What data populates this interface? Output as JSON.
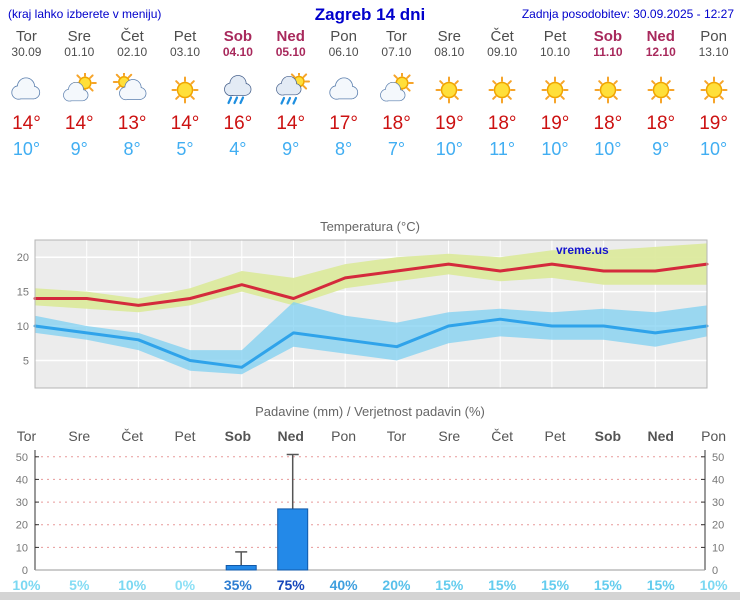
{
  "header": {
    "left_note": "(kraj lahko izberete v meniju)",
    "title": "Zagreb 14 dni",
    "updated": "Zadnja posodobitev: 30.09.2025 - 12:27"
  },
  "colors": {
    "accent_blue": "#0000cc",
    "weekend_red": "#a8295c",
    "tmax_red": "#cc1111",
    "tmin_blue": "#41aef2",
    "chart_bg": "#ececec",
    "grid_pink": "#e89a9a",
    "bar_fill": "#2389e8",
    "bar_stroke": "#1159a8",
    "whisker": "#555555"
  },
  "days": [
    {
      "name": "Tor",
      "date": "30.09",
      "weekend": false,
      "icon": "cloud",
      "tmax": "14°",
      "tmin": "10°",
      "prob": "10%",
      "prob_color": "#7bd8f2"
    },
    {
      "name": "Sre",
      "date": "01.10",
      "weekend": false,
      "icon": "sun-cloud",
      "tmax": "14°",
      "tmin": "9°",
      "prob": "5%",
      "prob_color": "#84dcf4"
    },
    {
      "name": "Čet",
      "date": "02.10",
      "weekend": false,
      "icon": "cloud-sun",
      "tmax": "13°",
      "tmin": "8°",
      "prob": "10%",
      "prob_color": "#7bd8f2"
    },
    {
      "name": "Pet",
      "date": "03.10",
      "weekend": false,
      "icon": "sun",
      "tmax": "14°",
      "tmin": "5°",
      "prob": "0%",
      "prob_color": "#8ce0f6"
    },
    {
      "name": "Sob",
      "date": "04.10",
      "weekend": true,
      "icon": "rain",
      "tmax": "16°",
      "tmin": "4°",
      "prob": "35%",
      "prob_color": "#2e7ed2"
    },
    {
      "name": "Ned",
      "date": "05.10",
      "weekend": true,
      "icon": "rain-sun",
      "tmax": "14°",
      "tmin": "9°",
      "prob": "75%",
      "prob_color": "#1646ba"
    },
    {
      "name": "Pon",
      "date": "06.10",
      "weekend": false,
      "icon": "cloud",
      "tmax": "17°",
      "tmin": "8°",
      "prob": "40%",
      "prob_color": "#3f9fde"
    },
    {
      "name": "Tor",
      "date": "07.10",
      "weekend": false,
      "icon": "sun-cloud",
      "tmax": "18°",
      "tmin": "7°",
      "prob": "20%",
      "prob_color": "#58c0ea"
    },
    {
      "name": "Sre",
      "date": "08.10",
      "weekend": false,
      "icon": "sun",
      "tmax": "19°",
      "tmin": "10°",
      "prob": "15%",
      "prob_color": "#63ccee"
    },
    {
      "name": "Čet",
      "date": "09.10",
      "weekend": false,
      "icon": "sun",
      "tmax": "18°",
      "tmin": "11°",
      "prob": "15%",
      "prob_color": "#63ccee"
    },
    {
      "name": "Pet",
      "date": "10.10",
      "weekend": false,
      "icon": "sun",
      "tmax": "19°",
      "tmin": "10°",
      "prob": "15%",
      "prob_color": "#63ccee"
    },
    {
      "name": "Sob",
      "date": "11.10",
      "weekend": true,
      "icon": "sun",
      "tmax": "18°",
      "tmin": "10°",
      "prob": "15%",
      "prob_color": "#63ccee"
    },
    {
      "name": "Ned",
      "date": "12.10",
      "weekend": true,
      "icon": "sun",
      "tmax": "18°",
      "tmin": "9°",
      "prob": "15%",
      "prob_color": "#63ccee"
    },
    {
      "name": "Pon",
      "date": "13.10",
      "weekend": false,
      "icon": "sun",
      "tmax": "19°",
      "tmin": "10°",
      "prob": "10%",
      "prob_color": "#7bd8f2"
    }
  ],
  "chart_data": [
    {
      "type": "line",
      "title": "Temperatura (°C)",
      "x_labels": [
        "Tor",
        "Sre",
        "Čet",
        "Pet",
        "Sob",
        "Ned",
        "Pon",
        "Tor",
        "Sre",
        "Čet",
        "Pet",
        "Sob",
        "Ned",
        "Pon"
      ],
      "ylim": [
        1,
        22.5
      ],
      "yticks": [
        5,
        10,
        15,
        20
      ],
      "grid": true,
      "watermark": "vreme.us",
      "series": [
        {
          "name": "max-temperature",
          "color": "#d42a3c",
          "values": [
            14,
            14,
            13,
            14,
            16,
            14,
            17,
            18,
            19,
            18,
            19,
            18,
            18,
            19
          ]
        },
        {
          "name": "min-temperature",
          "color": "#2fa3ea",
          "values": [
            10,
            9,
            8,
            5,
            4,
            9,
            8,
            7,
            10,
            11,
            10,
            10,
            9,
            10
          ]
        }
      ],
      "bands": [
        {
          "name": "max-temperature-range",
          "color": "#dcea9e",
          "opacity": 0.95,
          "high": [
            15.5,
            15,
            14,
            15.5,
            18,
            17,
            19,
            20,
            20.5,
            20,
            21,
            21,
            21.5,
            22
          ],
          "low": [
            13,
            12.5,
            12,
            13,
            15,
            13,
            15.5,
            16.5,
            17.5,
            16.5,
            17,
            16,
            16,
            16
          ]
        },
        {
          "name": "min-temperature-range",
          "color": "#7fd0f2",
          "opacity": 0.75,
          "high": [
            11.5,
            10,
            9,
            6.5,
            6.5,
            13.5,
            11.5,
            10.5,
            12,
            12.5,
            12,
            12.5,
            12,
            13
          ],
          "low": [
            9,
            8,
            6.5,
            3.5,
            3,
            7,
            6,
            5,
            7.5,
            8.5,
            8,
            8,
            7,
            8.5
          ]
        }
      ]
    },
    {
      "type": "bar",
      "title": "Padavine (mm) / Verjetnost padavin (%)",
      "x_labels": [
        "Tor",
        "Sre",
        "Čet",
        "Pet",
        "Sob",
        "Ned",
        "Pon",
        "Tor",
        "Sre",
        "Čet",
        "Pet",
        "Sob",
        "Ned",
        "Pon"
      ],
      "ylabel_left": "mm",
      "ylim": [
        0,
        53
      ],
      "yticks": [
        0,
        10,
        20,
        30,
        40,
        50
      ],
      "bars": [
        {
          "index": 4,
          "label": "Sob 04.10",
          "value": 2,
          "whisker": 8
        },
        {
          "index": 5,
          "label": "Ned 05.10",
          "value": 27,
          "whisker": 51
        }
      ],
      "probabilities": [
        "10%",
        "5%",
        "10%",
        "0%",
        "35%",
        "75%",
        "40%",
        "20%",
        "15%",
        "15%",
        "15%",
        "15%",
        "15%",
        "10%"
      ]
    }
  ]
}
